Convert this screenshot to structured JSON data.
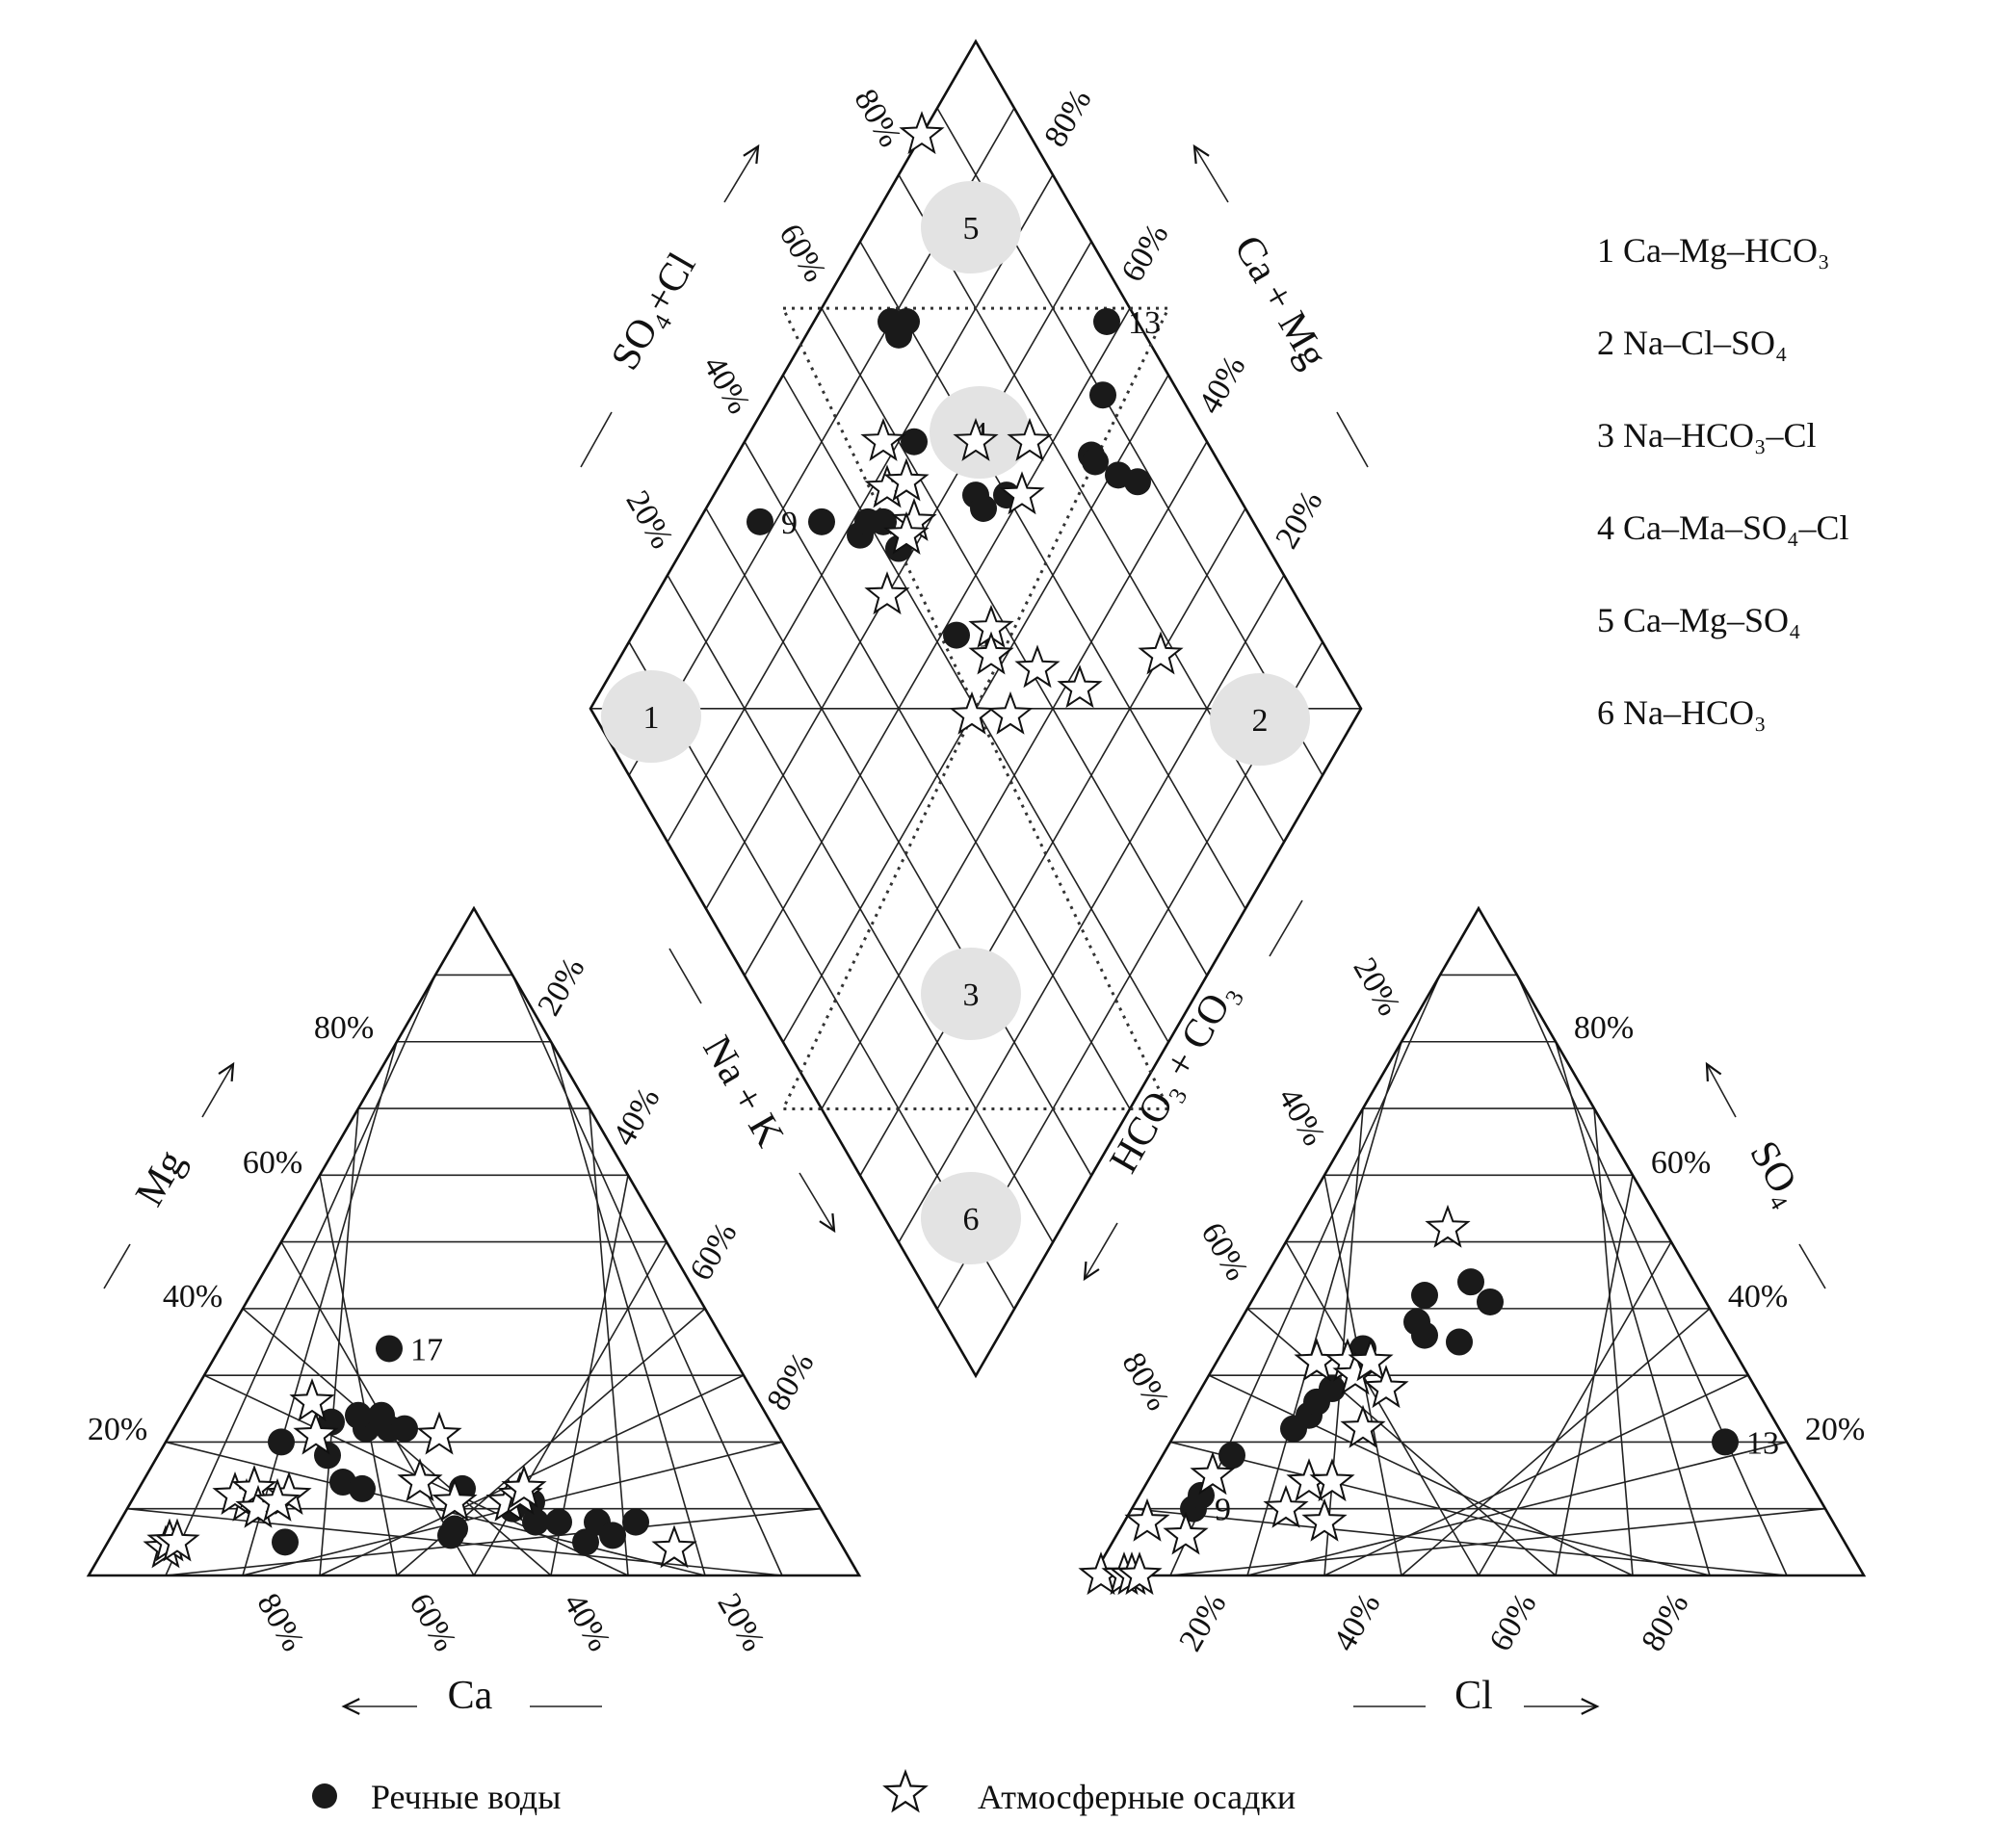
{
  "chart_data": {
    "type": "scatter",
    "title": "",
    "tick_labels": [
      "20%",
      "40%",
      "60%",
      "80%"
    ],
    "axes": {
      "cation_mg": "Mg",
      "cation_ca": "Ca",
      "anion_so4": "SO₄",
      "anion_cl": "Cl",
      "diamond_so4cl": "SO₄+Cl",
      "diamond_camg": "Ca + Mg",
      "diamond_nak": "Na + K",
      "diamond_hco3co3": "HCO₃ + CO₃"
    },
    "zones": [
      {
        "id": "1",
        "label": "1 Ca–Mg–HCO₃"
      },
      {
        "id": "2",
        "label": "2 Na–Cl–SO₄"
      },
      {
        "id": "3",
        "label": "3 Na–HCO₃–Cl"
      },
      {
        "id": "4",
        "label": "4 Ca–Ma–SO₄–Cl"
      },
      {
        "id": "5",
        "label": "5 Ca–Mg–SO₄"
      },
      {
        "id": "6",
        "label": "6 Na–HCO₃"
      }
    ],
    "legend": {
      "river": "Речные воды",
      "precip": "Атмосферные осадки"
    },
    "series": [
      {
        "name": "Речные воды",
        "cation": [
          {
            "ca": 72,
            "mg": 5
          },
          {
            "ca": 65,
            "mg": 20
          },
          {
            "ca": 60,
            "mg": 18
          },
          {
            "ca": 57,
            "mg": 23
          },
          {
            "ca": 53,
            "mg": 22
          },
          {
            "ca": 53,
            "mg": 24
          },
          {
            "ca": 50,
            "mg": 22
          },
          {
            "ca": 50,
            "mg": 24
          },
          {
            "ca": 48,
            "mg": 22
          },
          {
            "ca": 60,
            "mg": 14
          },
          {
            "ca": 58,
            "mg": 13
          },
          {
            "ca": 45,
            "mg": 13
          },
          {
            "ca": 50,
            "mg": 6
          },
          {
            "ca": 49,
            "mg": 7
          },
          {
            "ca": 40,
            "mg": 10
          },
          {
            "ca": 37,
            "mg": 11
          },
          {
            "ca": 38,
            "mg": 8
          },
          {
            "ca": 35,
            "mg": 8
          },
          {
            "ca": 33,
            "mg": 5
          },
          {
            "ca": 30,
            "mg": 8
          },
          {
            "ca": 29,
            "mg": 6
          },
          {
            "ca": 25,
            "mg": 8
          },
          {
            "ca": 44,
            "mg": 34,
            "label": "17"
          }
        ],
        "anion": [
          {
            "cl": 8,
            "so4": 10,
            "label": "9"
          },
          {
            "cl": 8,
            "so4": 12
          },
          {
            "cl": 9,
            "so4": 18
          },
          {
            "cl": 16,
            "so4": 24
          },
          {
            "cl": 15,
            "so4": 22
          },
          {
            "cl": 16,
            "so4": 26
          },
          {
            "cl": 17,
            "so4": 28
          },
          {
            "cl": 18,
            "so4": 34
          },
          {
            "cl": 22,
            "so4": 42
          },
          {
            "cl": 23,
            "so4": 38
          },
          {
            "cl": 25,
            "so4": 36
          },
          {
            "cl": 27,
            "so4": 44
          },
          {
            "cl": 30,
            "so4": 35
          },
          {
            "cl": 31,
            "so4": 41
          },
          {
            "cl": 72,
            "so4": 20,
            "label": "13"
          }
        ],
        "diamond": [
          {
            "so4cl": 36,
            "nak": 8,
            "label": "9"
          },
          {
            "so4cl": 53,
            "nak": 42,
            "label": "1"
          },
          {
            "so4cl": 52,
            "nak": 28
          },
          {
            "so4cl": 44,
            "nak": 16
          },
          {
            "so4cl": 48,
            "nak": 22
          },
          {
            "so4cl": 50,
            "nak": 22
          },
          {
            "so4cl": 52,
            "nak": 24
          },
          {
            "so4cl": 62,
            "nak": 22
          },
          {
            "so4cl": 68,
            "nak": 12
          },
          {
            "so4cl": 70,
            "nak": 12
          },
          {
            "so4cl": 68,
            "nak": 10
          },
          {
            "so4cl": 66,
            "nak": 34
          },
          {
            "so4cl": 66,
            "nak": 36
          },
          {
            "so4cl": 70,
            "nak": 38
          },
          {
            "so4cl": 84,
            "nak": 46
          },
          {
            "so4cl": 84,
            "nak": 47
          },
          {
            "so4cl": 90,
            "nak": 43
          },
          {
            "so4cl": 86,
            "nak": 51
          },
          {
            "so4cl": 88,
            "nak": 54
          },
          {
            "so4cl": 96,
            "nak": 38,
            "label": "13"
          }
        ]
      },
      {
        "name": "Атмосферные осадки",
        "cation": [
          {
            "ca": 88,
            "mg": 4
          },
          {
            "ca": 87,
            "mg": 5
          },
          {
            "ca": 86,
            "mg": 5
          },
          {
            "ca": 74,
            "mg": 11
          },
          {
            "ca": 75,
            "mg": 12
          },
          {
            "ca": 72,
            "mg": 13
          },
          {
            "ca": 73,
            "mg": 10
          },
          {
            "ca": 68,
            "mg": 12
          },
          {
            "ca": 70,
            "mg": 11
          },
          {
            "ca": 60,
            "mg": 21
          },
          {
            "ca": 58,
            "mg": 26
          },
          {
            "ca": 50,
            "mg": 14
          },
          {
            "ca": 44,
            "mg": 21
          },
          {
            "ca": 40,
            "mg": 11
          },
          {
            "ca": 38,
            "mg": 12
          },
          {
            "ca": 37,
            "mg": 13
          },
          {
            "ca": 47,
            "mg": 11
          },
          {
            "ca": 22,
            "mg": 4
          }
        ],
        "anion": [
          {
            "cl": 1,
            "so4": 0
          },
          {
            "cl": 4,
            "so4": 0
          },
          {
            "cl": 5,
            "so4": 0
          },
          {
            "cl": 6,
            "so4": 0
          },
          {
            "cl": 3,
            "so4": 8
          },
          {
            "cl": 9,
            "so4": 6
          },
          {
            "cl": 8,
            "so4": 15
          },
          {
            "cl": 20,
            "so4": 10
          },
          {
            "cl": 21,
            "so4": 14
          },
          {
            "cl": 24,
            "so4": 14
          },
          {
            "cl": 26,
            "so4": 8
          },
          {
            "cl": 13,
            "so4": 32
          },
          {
            "cl": 17,
            "so4": 32
          },
          {
            "cl": 19,
            "so4": 30
          },
          {
            "cl": 20,
            "so4": 32
          },
          {
            "cl": 24,
            "so4": 28
          },
          {
            "cl": 24,
            "so4": 22
          },
          {
            "cl": 20,
            "so4": 52
          }
        ],
        "diamond": [
          {
            "so4cl": 47,
            "nak": 30
          },
          {
            "so4cl": 55,
            "nak": 22
          },
          {
            "so4cl": 56,
            "nak": 28
          },
          {
            "so4cl": 58,
            "nak": 18
          },
          {
            "so4cl": 54,
            "nak": 28
          },
          {
            "so4cl": 58,
            "nak": 24
          },
          {
            "so4cl": 70,
            "nak": 30
          },
          {
            "so4cl": 72,
            "nak": 40
          },
          {
            "so4cl": 77,
            "nak": 37
          },
          {
            "so4cl": 58,
            "nak": 46
          },
          {
            "so4cl": 56,
            "nak": 48
          },
          {
            "so4cl": 49,
            "nak": 50
          },
          {
            "so4cl": 54,
            "nak": 55
          },
          {
            "so4cl": 61,
            "nak": 55
          },
          {
            "so4cl": 65,
            "nak": 62
          },
          {
            "so4cl": 78,
            "nak": 70
          },
          {
            "so4cl": 86,
            "nak": 0
          }
        ]
      }
    ]
  }
}
